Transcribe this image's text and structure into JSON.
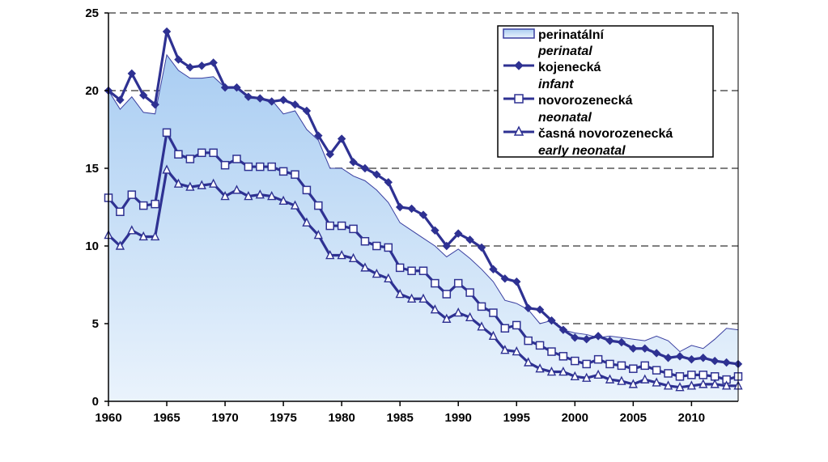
{
  "chart_data": {
    "type": "line",
    "title": "",
    "xlabel": "",
    "ylabel": "",
    "xlim": [
      1960,
      2014
    ],
    "ylim": [
      0,
      25
    ],
    "x_ticks": [
      "1960",
      "1965",
      "1970",
      "1975",
      "1980",
      "1985",
      "1990",
      "1995",
      "2000",
      "2005",
      "2010"
    ],
    "y_ticks": [
      "0",
      "5",
      "10",
      "15",
      "20",
      "25"
    ],
    "x": [
      1960,
      1961,
      1962,
      1963,
      1964,
      1965,
      1966,
      1967,
      1968,
      1969,
      1970,
      1971,
      1972,
      1973,
      1974,
      1975,
      1976,
      1977,
      1978,
      1979,
      1980,
      1981,
      1982,
      1983,
      1984,
      1985,
      1986,
      1987,
      1988,
      1989,
      1990,
      1991,
      1992,
      1993,
      1994,
      1995,
      1996,
      1997,
      1998,
      1999,
      2000,
      2001,
      2002,
      2003,
      2004,
      2005,
      2006,
      2007,
      2008,
      2009,
      2010,
      2011,
      2012,
      2013,
      2014
    ],
    "legend_position": "top-right",
    "series": [
      {
        "name_cz": "perinatální",
        "name_en": "perinatal",
        "style": "area",
        "color": "#3a3fa0",
        "fill_top": "#a9cdf2",
        "fill_bottom": "#eaf3fc",
        "values": [
          20.0,
          18.8,
          19.6,
          18.6,
          18.5,
          22.3,
          21.3,
          20.8,
          20.8,
          20.9,
          20.2,
          20.2,
          19.5,
          19.5,
          19.4,
          18.5,
          18.7,
          17.5,
          16.8,
          15.0,
          15.0,
          14.5,
          14.2,
          13.6,
          12.8,
          11.5,
          11.0,
          10.5,
          10.0,
          9.3,
          9.8,
          9.2,
          8.5,
          7.7,
          6.5,
          6.3,
          5.9,
          5.0,
          5.2,
          4.6,
          4.4,
          4.3,
          4.1,
          4.2,
          4.1,
          4.0,
          3.9,
          4.2,
          3.9,
          3.2,
          3.6,
          3.4,
          4.0,
          4.7,
          4.6
        ]
      },
      {
        "name_cz": "kojenecká",
        "name_en": "infant",
        "style": "line-diamond",
        "color": "#2e3192",
        "values": [
          20.0,
          19.4,
          21.1,
          19.7,
          19.1,
          23.8,
          22.0,
          21.5,
          21.6,
          21.8,
          20.2,
          20.2,
          19.6,
          19.5,
          19.3,
          19.4,
          19.1,
          18.7,
          17.1,
          15.9,
          16.9,
          15.4,
          15.0,
          14.6,
          14.1,
          12.5,
          12.4,
          12.0,
          11.0,
          10.0,
          10.8,
          10.4,
          9.9,
          8.5,
          7.9,
          7.7,
          6.0,
          5.9,
          5.2,
          4.6,
          4.1,
          4.0,
          4.2,
          3.9,
          3.8,
          3.4,
          3.4,
          3.1,
          2.8,
          2.9,
          2.7,
          2.8,
          2.6,
          2.5,
          2.4
        ]
      },
      {
        "name_cz": "novorozenecká",
        "name_en": "neonatal",
        "style": "line-square",
        "color": "#2e3192",
        "values": [
          13.1,
          12.2,
          13.3,
          12.6,
          12.7,
          17.3,
          15.9,
          15.6,
          16.0,
          16.0,
          15.2,
          15.6,
          15.1,
          15.1,
          15.1,
          14.8,
          14.6,
          13.6,
          12.6,
          11.3,
          11.3,
          11.1,
          10.3,
          10.0,
          9.9,
          8.6,
          8.4,
          8.4,
          7.6,
          6.9,
          7.6,
          7.0,
          6.1,
          5.7,
          4.7,
          4.9,
          3.9,
          3.6,
          3.2,
          2.9,
          2.6,
          2.4,
          2.7,
          2.4,
          2.3,
          2.1,
          2.3,
          2.0,
          1.8,
          1.6,
          1.7,
          1.7,
          1.6,
          1.4,
          1.6
        ]
      },
      {
        "name_cz": "časná novorozenecká",
        "name_en": "early neonatal",
        "style": "line-triangle",
        "color": "#2e3192",
        "values": [
          10.7,
          10.0,
          11.0,
          10.6,
          10.6,
          14.9,
          14.0,
          13.8,
          13.9,
          14.0,
          13.2,
          13.6,
          13.2,
          13.3,
          13.2,
          12.9,
          12.6,
          11.5,
          10.7,
          9.4,
          9.4,
          9.2,
          8.6,
          8.2,
          7.9,
          6.9,
          6.6,
          6.6,
          5.9,
          5.3,
          5.7,
          5.4,
          4.8,
          4.2,
          3.3,
          3.2,
          2.5,
          2.1,
          1.9,
          1.9,
          1.6,
          1.5,
          1.7,
          1.4,
          1.3,
          1.1,
          1.4,
          1.2,
          1.0,
          0.9,
          1.0,
          1.1,
          1.1,
          1.0,
          1.0
        ]
      }
    ]
  }
}
